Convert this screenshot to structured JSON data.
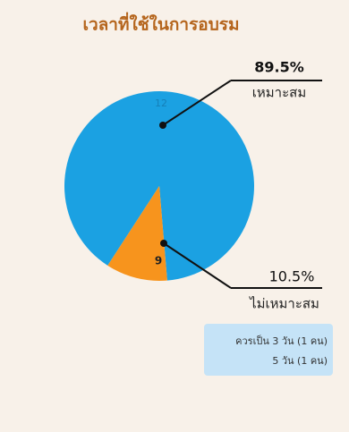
{
  "chart_data": {
    "type": "pie",
    "title": "เวลาที่ใช้ในการอบรม",
    "categories": [
      "เหมาะสม",
      "ไม่เหมาะสม"
    ],
    "values": [
      89.5,
      10.5
    ],
    "value_labels": [
      "89.5%",
      "10.5%"
    ],
    "colors": [
      "#1ba1e2",
      "#f7941d"
    ],
    "clock_labels": [
      "12",
      "9"
    ],
    "annotation": [
      "ควรเป็น 3 วัน (1 คน)",
      "5 วัน (1 คน)"
    ]
  }
}
